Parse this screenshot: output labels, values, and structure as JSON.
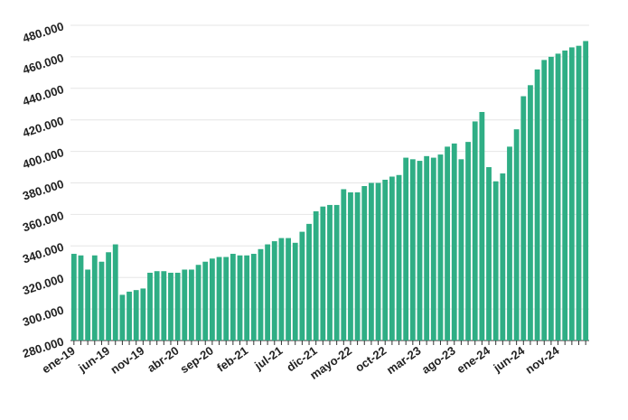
{
  "chart_data": {
    "type": "bar",
    "categories": [
      "ene-19",
      null,
      null,
      null,
      null,
      "jun-19",
      null,
      null,
      null,
      null,
      "nov-19",
      null,
      null,
      null,
      null,
      "abr-20",
      null,
      null,
      null,
      null,
      "sep-20",
      null,
      null,
      null,
      null,
      "feb-21",
      null,
      null,
      null,
      null,
      "jul-21",
      null,
      null,
      null,
      null,
      "dic-21",
      null,
      null,
      null,
      null,
      "mayo-22",
      null,
      null,
      null,
      null,
      "oct-22",
      null,
      null,
      null,
      null,
      "mar-23",
      null,
      null,
      null,
      null,
      "ago-23",
      null,
      null,
      null,
      null,
      "ene-24",
      null,
      null,
      null,
      null,
      "jun-24",
      null,
      null,
      null,
      null,
      "nov-24",
      null,
      null,
      null,
      null
    ],
    "values": [
      335000,
      334000,
      325000,
      334000,
      330000,
      336000,
      341000,
      309000,
      311000,
      312000,
      313000,
      323000,
      324000,
      324000,
      323000,
      323000,
      325000,
      325000,
      328000,
      330000,
      332000,
      333000,
      333000,
      335000,
      334000,
      334000,
      335000,
      338000,
      341000,
      343000,
      345000,
      345000,
      342000,
      349000,
      354000,
      362000,
      365000,
      366000,
      366000,
      376000,
      374000,
      374000,
      378000,
      380000,
      380000,
      382000,
      384000,
      385000,
      396000,
      395000,
      394000,
      397000,
      396000,
      398000,
      403000,
      405000,
      395000,
      406000,
      419000,
      425000,
      390000,
      381000,
      386000,
      403000,
      414000,
      435000,
      442000,
      452000,
      458000,
      460000,
      462000,
      464000,
      466000,
      467000,
      470000
    ],
    "color": "#2fae85",
    "ylim": [
      280000,
      480000
    ],
    "yticks": [
      {
        "value": 280000,
        "label": "280.000"
      },
      {
        "value": 300000,
        "label": "300.000"
      },
      {
        "value": 320000,
        "label": "320.000"
      },
      {
        "value": 340000,
        "label": "340.000"
      },
      {
        "value": 360000,
        "label": "360.000"
      },
      {
        "value": 380000,
        "label": "380.000"
      },
      {
        "value": 400000,
        "label": "400.000"
      },
      {
        "value": 420000,
        "label": "420.000"
      },
      {
        "value": 440000,
        "label": "440.000"
      },
      {
        "value": 460000,
        "label": "460.000"
      },
      {
        "value": 480000,
        "label": "480.000"
      }
    ],
    "grid": true
  }
}
